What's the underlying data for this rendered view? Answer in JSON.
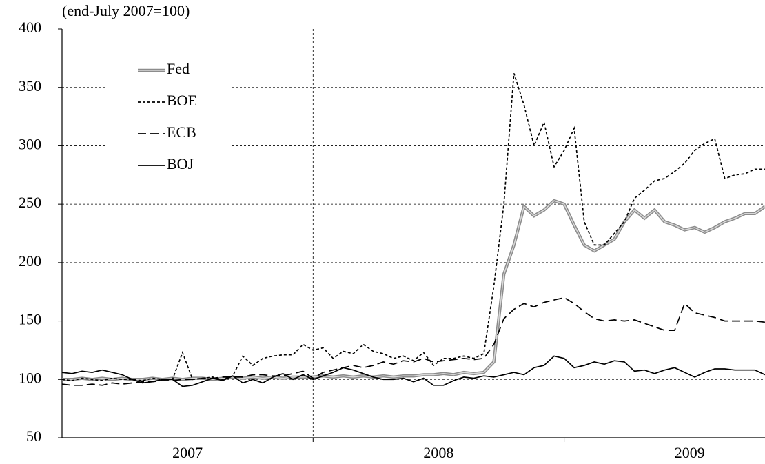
{
  "chart_data": {
    "type": "line",
    "subtitle": "(end-July 2007=100)",
    "x": [
      2007.0,
      2007.04,
      2007.08,
      2007.12,
      2007.16,
      2007.2,
      2007.24,
      2007.28,
      2007.32,
      2007.36,
      2007.4,
      2007.44,
      2007.48,
      2007.52,
      2007.56,
      2007.6,
      2007.64,
      2007.68,
      2007.72,
      2007.76,
      2007.8,
      2007.84,
      2007.88,
      2007.92,
      2007.96,
      2008.0,
      2008.04,
      2008.08,
      2008.12,
      2008.16,
      2008.2,
      2008.24,
      2008.28,
      2008.32,
      2008.36,
      2008.4,
      2008.44,
      2008.48,
      2008.52,
      2008.56,
      2008.6,
      2008.64,
      2008.68,
      2008.72,
      2008.76,
      2008.8,
      2008.84,
      2008.88,
      2008.92,
      2008.96,
      2009.0,
      2009.04,
      2009.08,
      2009.12,
      2009.16,
      2009.2,
      2009.24,
      2009.28,
      2009.32,
      2009.36,
      2009.4,
      2009.44,
      2009.48,
      2009.52,
      2009.56,
      2009.6,
      2009.64,
      2009.68,
      2009.72,
      2009.76,
      2009.8
    ],
    "xlim": [
      2007,
      2009.8
    ],
    "xticks": [
      {
        "value": 2007.5,
        "label": "2007"
      },
      {
        "value": 2008.5,
        "label": "2008"
      },
      {
        "value": 2009.5,
        "label": "2009"
      }
    ],
    "xgrid": [
      2008,
      2009
    ],
    "ylim": [
      50,
      400
    ],
    "yticks": [
      50,
      100,
      150,
      200,
      250,
      300,
      350,
      400
    ],
    "grid": true,
    "legend": "upper left",
    "series": [
      {
        "name": "Fed",
        "color": "#8c8c8c",
        "style": "double",
        "values": [
          100,
          100,
          101,
          100,
          101,
          100,
          101,
          100,
          100,
          101,
          100,
          101,
          100,
          101,
          101,
          100,
          101,
          102,
          101,
          102,
          101,
          102,
          101,
          102,
          102,
          102,
          103,
          102,
          103,
          102,
          103,
          102,
          103,
          102,
          103,
          103,
          104,
          104,
          105,
          104,
          106,
          105,
          106,
          115,
          190,
          215,
          248,
          240,
          245,
          253,
          250,
          232,
          215,
          210,
          215,
          220,
          235,
          245,
          238,
          245,
          235,
          232,
          228,
          230,
          226,
          230,
          235,
          238,
          242,
          242,
          248
        ]
      },
      {
        "name": "BOE",
        "color": "#000000",
        "style": "4,3",
        "values": [
          100,
          99,
          101,
          100,
          99,
          101,
          100,
          100,
          99,
          101,
          100,
          100,
          123,
          100,
          101,
          102,
          100,
          103,
          120,
          112,
          118,
          120,
          121,
          121,
          130,
          125,
          127,
          118,
          124,
          122,
          130,
          124,
          122,
          118,
          120,
          116,
          123,
          112,
          118,
          118,
          120,
          118,
          122,
          180,
          250,
          362,
          335,
          300,
          320,
          282,
          296,
          315,
          235,
          215,
          215,
          225,
          235,
          255,
          262,
          270,
          272,
          278,
          285,
          296,
          302,
          306,
          272,
          275,
          276,
          280,
          280
        ]
      },
      {
        "name": "ECB",
        "color": "#000000",
        "style": "12,6",
        "values": [
          96,
          95,
          95,
          96,
          95,
          97,
          96,
          97,
          98,
          98,
          99,
          99,
          100,
          100,
          101,
          101,
          102,
          102,
          102,
          104,
          104,
          103,
          103,
          105,
          107,
          101,
          106,
          108,
          110,
          112,
          110,
          112,
          115,
          113,
          116,
          115,
          118,
          115,
          116,
          117,
          118,
          117,
          118,
          130,
          152,
          160,
          165,
          162,
          166,
          168,
          170,
          165,
          158,
          152,
          150,
          151,
          150,
          151,
          148,
          145,
          142,
          142,
          165,
          157,
          155,
          153,
          150,
          150,
          150,
          150,
          149
        ]
      },
      {
        "name": "BOJ",
        "color": "#000000",
        "style": "solid",
        "values": [
          106,
          105,
          107,
          106,
          108,
          106,
          104,
          100,
          97,
          98,
          100,
          100,
          94,
          95,
          98,
          101,
          99,
          103,
          97,
          100,
          97,
          102,
          105,
          100,
          104,
          100,
          103,
          106,
          110,
          108,
          105,
          102,
          100,
          100,
          101,
          98,
          101,
          95,
          95,
          99,
          102,
          101,
          103,
          102,
          104,
          106,
          104,
          110,
          112,
          120,
          118,
          110,
          112,
          115,
          113,
          116,
          115,
          107,
          108,
          105,
          108,
          110,
          106,
          102,
          106,
          109,
          109,
          108,
          108,
          108,
          104
        ]
      }
    ]
  }
}
